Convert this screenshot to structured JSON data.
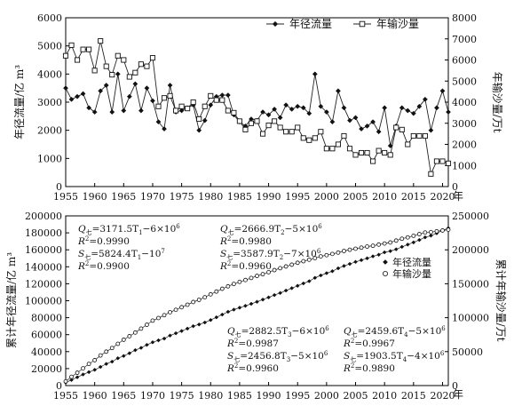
{
  "chart_data": [
    {
      "type": "line",
      "xlabel": "年",
      "ylabel_left": "年径流量/亿 m³",
      "ylabel_right": "年输沙量/万t",
      "xlim": [
        1955,
        2021
      ],
      "ylim_left": [
        0,
        6000
      ],
      "ylim_right": [
        0,
        8000
      ],
      "x_ticks": [
        1955,
        1960,
        1965,
        1970,
        1975,
        1980,
        1985,
        1990,
        1995,
        2000,
        2005,
        2010,
        2015,
        2020
      ],
      "y_ticks_left": [
        0,
        1000,
        2000,
        3000,
        4000,
        5000,
        6000
      ],
      "y_ticks_right": [
        0,
        1000,
        2000,
        3000,
        4000,
        5000,
        6000,
        7000,
        8000
      ],
      "x": [
        1955,
        1956,
        1957,
        1958,
        1959,
        1960,
        1961,
        1962,
        1963,
        1964,
        1965,
        1966,
        1967,
        1968,
        1969,
        1970,
        1971,
        1972,
        1973,
        1974,
        1975,
        1976,
        1977,
        1978,
        1979,
        1980,
        1981,
        1982,
        1983,
        1984,
        1985,
        1986,
        1987,
        1988,
        1989,
        1990,
        1991,
        1992,
        1993,
        1994,
        1995,
        1996,
        1997,
        1998,
        1999,
        2000,
        2001,
        2002,
        2003,
        2004,
        2005,
        2006,
        2007,
        2008,
        2009,
        2010,
        2011,
        2012,
        2013,
        2014,
        2015,
        2016,
        2017,
        2018,
        2019,
        2020,
        2021
      ],
      "legend_position": "top-right",
      "series": [
        {
          "name": "年径流量",
          "axis": "left",
          "marker": "filled-diamond",
          "values": [
            3500,
            3100,
            3200,
            3300,
            2800,
            2650,
            3400,
            3600,
            2650,
            4000,
            2700,
            3200,
            3650,
            2700,
            3500,
            3050,
            2300,
            2050,
            3600,
            2650,
            2700,
            2800,
            2900,
            2000,
            2350,
            2900,
            3200,
            3250,
            3250,
            2550,
            2300,
            2150,
            2400,
            2350,
            2650,
            2550,
            2750,
            2450,
            2900,
            2750,
            2850,
            2800,
            2600,
            4000,
            2850,
            2650,
            2300,
            3400,
            2800,
            2350,
            2450,
            2050,
            2150,
            2300,
            1950,
            2800,
            1450,
            2150,
            2800,
            2700,
            2600,
            2850,
            3100,
            2000,
            2800,
            3400,
            2650
          ]
        },
        {
          "name": "年输沙量",
          "axis": "right",
          "marker": "hollow-square",
          "values": [
            6200,
            6700,
            6000,
            6500,
            6500,
            5500,
            6900,
            5700,
            5300,
            6200,
            6000,
            5200,
            5400,
            5800,
            5700,
            6100,
            3800,
            4200,
            4300,
            3600,
            3800,
            3700,
            4000,
            3200,
            3800,
            4300,
            4100,
            4100,
            3600,
            3500,
            3100,
            2700,
            3000,
            3100,
            2500,
            2900,
            3100,
            2800,
            2600,
            2600,
            2800,
            2300,
            2200,
            2300,
            2600,
            1800,
            1800,
            2000,
            2400,
            1800,
            1500,
            1600,
            1600,
            1200,
            1700,
            1600,
            1500,
            2800,
            2700,
            2000,
            2400,
            2400,
            2400,
            600,
            1200,
            1200,
            1100
          ]
        }
      ]
    },
    {
      "type": "line",
      "xlabel": "年",
      "ylabel_left": "累计年径流量/亿 m³",
      "ylabel_right": "累计年输沙量/万t",
      "xlim": [
        1955,
        2021
      ],
      "ylim_left": [
        0,
        200000
      ],
      "ylim_right": [
        0,
        250000
      ],
      "x_ticks": [
        1955,
        1960,
        1965,
        1970,
        1975,
        1980,
        1985,
        1990,
        1995,
        2000,
        2005,
        2010,
        2015,
        2020
      ],
      "y_ticks_left": [
        0,
        20000,
        40000,
        60000,
        80000,
        100000,
        120000,
        140000,
        160000,
        180000,
        200000
      ],
      "y_ticks_right": [
        0,
        50000,
        100000,
        150000,
        200000,
        250000
      ],
      "x": [
        1955,
        1956,
        1957,
        1958,
        1959,
        1960,
        1961,
        1962,
        1963,
        1964,
        1965,
        1966,
        1967,
        1968,
        1969,
        1970,
        1971,
        1972,
        1973,
        1974,
        1975,
        1976,
        1977,
        1978,
        1979,
        1980,
        1981,
        1982,
        1983,
        1984,
        1985,
        1986,
        1987,
        1988,
        1989,
        1990,
        1991,
        1992,
        1993,
        1994,
        1995,
        1996,
        1997,
        1998,
        1999,
        2000,
        2001,
        2002,
        2003,
        2004,
        2005,
        2006,
        2007,
        2008,
        2009,
        2010,
        2011,
        2012,
        2013,
        2014,
        2015,
        2016,
        2017,
        2018,
        2019,
        2020,
        2021
      ],
      "legend_position": "right",
      "series": [
        {
          "name": "年径流量",
          "axis": "left",
          "marker": "filled-diamond",
          "values": [
            3500,
            6600,
            9800,
            13100,
            15900,
            18550,
            21950,
            25550,
            28200,
            32200,
            34900,
            38100,
            41750,
            44450,
            47950,
            51000,
            53300,
            55350,
            58950,
            61600,
            64300,
            67100,
            70000,
            72000,
            74350,
            77250,
            80450,
            83700,
            86950,
            89500,
            91800,
            93950,
            96350,
            98700,
            101350,
            103900,
            106650,
            109100,
            112000,
            114750,
            117600,
            120400,
            123000,
            127000,
            129850,
            132500,
            134800,
            138200,
            141000,
            143350,
            145800,
            147850,
            150000,
            152300,
            154250,
            157050,
            158500,
            160650,
            163450,
            166150,
            168750,
            171600,
            174700,
            176700,
            179500,
            182900,
            185550
          ]
        },
        {
          "name": "年输沙量",
          "axis": "right",
          "marker": "hollow-circle",
          "values": [
            6200,
            12900,
            18900,
            25400,
            31900,
            37400,
            44300,
            50000,
            55300,
            61500,
            67500,
            72700,
            78100,
            83900,
            89600,
            95700,
            99500,
            103700,
            108000,
            111600,
            115400,
            119100,
            123100,
            126300,
            130100,
            134400,
            138500,
            142600,
            146200,
            149700,
            152800,
            155500,
            158500,
            161600,
            164100,
            167000,
            170100,
            172900,
            175500,
            178100,
            180900,
            183200,
            185400,
            187700,
            190300,
            192100,
            193900,
            195900,
            198300,
            200100,
            201600,
            203200,
            204800,
            206000,
            207700,
            209300,
            210800,
            213600,
            216300,
            218300,
            220700,
            223100,
            225500,
            226100,
            227300,
            228500,
            229600
          ]
        }
      ],
      "annotations": [
        {
          "q": "Q",
          "sub": "七",
          "q_formula": "=3171.5T",
          "q_idx": "1",
          "q_tail": "−6×10",
          "q_exp": "6",
          "r1": "R",
          "r1_exp": "2",
          "r1_val": "=0.9990",
          "s": "S",
          "s_sub": "七",
          "s_formula": "=5824.4T",
          "s_idx": "1",
          "s_tail": "−10",
          "s_exp": "7",
          "r2": "R",
          "r2_exp": "2",
          "r2_val": "=0.9900"
        },
        {
          "q": "Q",
          "sub": "七",
          "q_formula": "=2666.9T",
          "q_idx": "2",
          "q_tail": "−5×10",
          "q_exp": "6",
          "r1": "R",
          "r1_exp": "2",
          "r1_val": "=0.9980",
          "s": "S",
          "s_sub": "七",
          "s_formula": "=3587.9T",
          "s_idx": "2",
          "s_tail": "−7×10",
          "s_exp": "6",
          "r2": "R",
          "r2_exp": "2",
          "r2_val": "=0.9960"
        },
        {
          "q": "Q",
          "sub": "七",
          "q_formula": "=2882.5T",
          "q_idx": "3",
          "q_tail": "−6×10",
          "q_exp": "6",
          "r1": "R",
          "r1_exp": "2",
          "r1_val": "=0.9987",
          "s": "S",
          "s_sub": "七",
          "s_formula": "=2456.8T",
          "s_idx": "3",
          "s_tail": "−5×10",
          "s_exp": "6",
          "r2": "R",
          "r2_exp": "2",
          "r2_val": "=0.9960"
        },
        {
          "q": "Q",
          "sub": "七",
          "q_formula": "=2459.6T",
          "q_idx": "4",
          "q_tail": "−5×10",
          "q_exp": "6",
          "r1": "R",
          "r1_exp": "2",
          "r1_val": "=0.9967",
          "s": "S",
          "s_sub": "七",
          "s_formula": "=1903.5T",
          "s_idx": "4",
          "s_tail": "−4×10",
          "s_exp": "6",
          "r2": "R",
          "r2_exp": "2",
          "r2_val": "=0.9890"
        }
      ]
    }
  ]
}
